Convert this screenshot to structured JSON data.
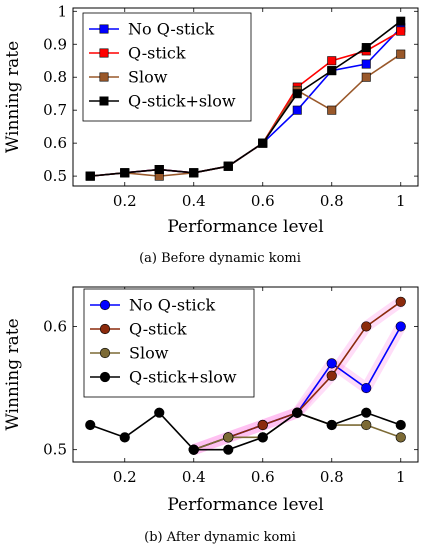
{
  "chart_data": [
    {
      "type": "line",
      "caption_tag": "(a)",
      "caption": "Before dynamic komi",
      "xlabel": "Performance level",
      "ylabel": "Winning rate",
      "xlim": [
        0.05,
        1.05
      ],
      "ylim": [
        0.47,
        1.01
      ],
      "xticks": [
        "0.2",
        "0.4",
        "0.6",
        "0.8",
        "1"
      ],
      "xtick_values": [
        0.2,
        0.4,
        0.6,
        0.8,
        1.0
      ],
      "yticks": [
        "0.5",
        "0.6",
        "0.7",
        "0.8",
        "0.9",
        "1"
      ],
      "ytick_values": [
        0.5,
        0.6,
        0.7,
        0.8,
        0.9,
        1.0
      ],
      "legend_position": "top-left",
      "marker": "square",
      "series": [
        {
          "name": "No Q-stick",
          "color": "#0000ff",
          "x": [
            0.1,
            0.2,
            0.3,
            0.4,
            0.5,
            0.6,
            0.7,
            0.8,
            0.9,
            1.0
          ],
          "y": [
            0.5,
            0.51,
            0.52,
            0.51,
            0.53,
            0.6,
            0.7,
            0.82,
            0.84,
            0.95
          ]
        },
        {
          "name": "Q-stick",
          "color": "#ff0000",
          "x": [
            0.1,
            0.2,
            0.3,
            0.4,
            0.5,
            0.6,
            0.7,
            0.8,
            0.9,
            1.0
          ],
          "y": [
            0.5,
            0.51,
            0.52,
            0.51,
            0.53,
            0.6,
            0.77,
            0.85,
            0.88,
            0.94
          ]
        },
        {
          "name": "Slow",
          "color": "#99582a",
          "x": [
            0.1,
            0.2,
            0.3,
            0.4,
            0.5,
            0.6,
            0.7,
            0.8,
            0.9,
            1.0
          ],
          "y": [
            0.5,
            0.51,
            0.5,
            0.51,
            0.53,
            0.6,
            0.76,
            0.7,
            0.8,
            0.87
          ]
        },
        {
          "name": "Q-stick+slow",
          "color": "#000000",
          "x": [
            0.1,
            0.2,
            0.3,
            0.4,
            0.5,
            0.6,
            0.7,
            0.8,
            0.9,
            1.0
          ],
          "y": [
            0.5,
            0.51,
            0.52,
            0.51,
            0.53,
            0.6,
            0.75,
            0.82,
            0.89,
            0.97
          ]
        }
      ]
    },
    {
      "type": "line",
      "caption_tag": "(b)",
      "caption": "After dynamic komi",
      "xlabel": "Performance level",
      "ylabel": "Winning rate",
      "xlim": [
        0.05,
        1.05
      ],
      "ylim": [
        0.49,
        0.632
      ],
      "xticks": [
        "0.2",
        "0.4",
        "0.6",
        "0.8",
        "1"
      ],
      "xtick_values": [
        0.2,
        0.4,
        0.6,
        0.8,
        1.0
      ],
      "yticks": [
        "0.5",
        "0.6"
      ],
      "ytick_values": [
        0.5,
        0.6
      ],
      "legend_position": "top-right",
      "marker": "circle",
      "series": [
        {
          "name": "No Q-stick",
          "color": "#0000ff",
          "x": [
            0.4,
            0.5,
            0.6,
            0.7,
            0.8,
            0.9,
            1.0
          ],
          "y": [
            0.5,
            0.51,
            0.52,
            0.53,
            0.57,
            0.55,
            0.6
          ]
        },
        {
          "name": "Q-stick",
          "color": "#8b2a0c",
          "x": [
            0.4,
            0.5,
            0.6,
            0.7,
            0.8,
            0.9,
            1.0
          ],
          "y": [
            0.5,
            0.51,
            0.52,
            0.53,
            0.56,
            0.6,
            0.62
          ]
        },
        {
          "name": "Slow",
          "color": "#7c6a35",
          "x": [
            0.4,
            0.5,
            0.6,
            0.7,
            0.8,
            0.9,
            1.0
          ],
          "y": [
            0.5,
            0.51,
            0.51,
            0.53,
            0.52,
            0.52,
            0.51
          ]
        },
        {
          "name": "Q-stick+slow",
          "color": "#000000",
          "x": [
            0.1,
            0.2,
            0.3,
            0.4,
            0.5,
            0.6,
            0.7,
            0.8,
            0.9,
            1.0
          ],
          "y": [
            0.52,
            0.51,
            0.53,
            0.5,
            0.5,
            0.51,
            0.53,
            0.52,
            0.53,
            0.52
          ]
        }
      ]
    }
  ]
}
